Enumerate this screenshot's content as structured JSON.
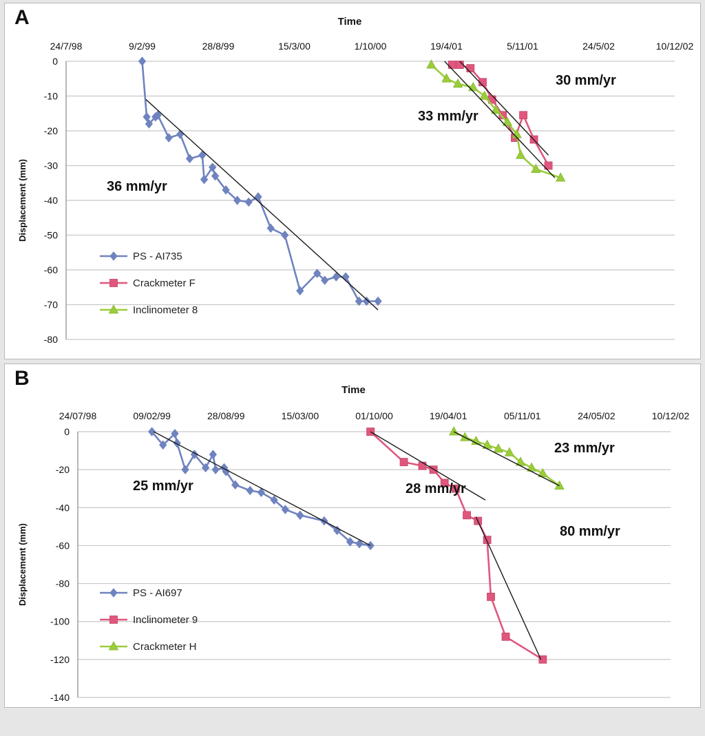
{
  "chart_data": [
    {
      "panel_label": "A",
      "type": "line",
      "title": "Time",
      "xlabel": "Time",
      "ylabel": "Displacement (mm)",
      "x_tick_labels": [
        "24/7/98",
        "9/2/99",
        "28/8/99",
        "15/3/00",
        "1/10/00",
        "19/4/01",
        "5/11/01",
        "24/5/02",
        "10/12/02"
      ],
      "x_unit": "days since 24/7/98",
      "xlim": [
        0,
        1600
      ],
      "ylim": [
        -80,
        0
      ],
      "yticks": [
        0,
        -10,
        -20,
        -30,
        -40,
        -50,
        -60,
        -70,
        -80
      ],
      "grid": true,
      "legend_position": "bottom-left",
      "series": [
        {
          "name": "PS - AI735",
          "color": "#6f83bf",
          "marker": "diamond",
          "x": [
            200,
            212,
            218,
            235,
            241,
            270,
            300,
            325,
            358,
            363,
            385,
            392,
            420,
            450,
            480,
            505,
            538,
            575,
            615,
            660,
            680,
            710,
            735,
            770,
            790,
            820
          ],
          "y": [
            0,
            -16,
            -18,
            -16,
            -15.5,
            -22,
            -21,
            -28,
            -27,
            -34,
            -30.5,
            -33,
            -37,
            -40,
            -40.5,
            -39,
            -48,
            -50,
            -66,
            -61,
            -63,
            -62,
            -62,
            -69,
            -69,
            -69
          ]
        },
        {
          "name": "Crackmeter F",
          "color": "#e0567c",
          "marker": "square",
          "x": [
            1015,
            1035,
            1063,
            1095,
            1120,
            1148,
            1180,
            1202,
            1230,
            1268
          ],
          "y": [
            -1,
            -1,
            -2,
            -6,
            -11,
            -15.5,
            -22,
            -15.5,
            -22.5,
            -30
          ]
        },
        {
          "name": "Inclinometer 8",
          "color": "#9acd3a",
          "marker": "triangle",
          "x": [
            960,
            1000,
            1030,
            1070,
            1100,
            1130,
            1160,
            1185,
            1195,
            1235,
            1300
          ],
          "y": [
            -1,
            -5,
            -6.5,
            -7.5,
            -10,
            -14,
            -17.5,
            -21,
            -27,
            -31,
            -33.5
          ]
        }
      ],
      "trendlines": [
        {
          "label": "36 mm/yr",
          "x": [
            210,
            820
          ],
          "y": [
            -11,
            -71.5
          ]
        },
        {
          "label": "33 mm/yr",
          "x": [
            995,
            1285
          ],
          "y": [
            0,
            -33.5
          ]
        },
        {
          "label": "30 mm/yr",
          "x": [
            1035,
            1268
          ],
          "y": [
            0,
            -27
          ]
        }
      ]
    },
    {
      "panel_label": "B",
      "type": "line",
      "title": "Time",
      "xlabel": "Time",
      "ylabel": "Displacement (mm)",
      "x_tick_labels": [
        "24/07/98",
        "09/02/99",
        "28/08/99",
        "15/03/00",
        "01/10/00",
        "19/04/01",
        "05/11/01",
        "24/05/02",
        "10/12/02"
      ],
      "x_unit": "days since 24/07/98",
      "xlim": [
        0,
        1600
      ],
      "ylim": [
        -140,
        0
      ],
      "yticks": [
        0,
        -20,
        -40,
        -60,
        -80,
        -100,
        -120,
        -140
      ],
      "grid": true,
      "legend_position": "bottom-left",
      "series": [
        {
          "name": "PS - AI697",
          "color": "#6f83bf",
          "marker": "diamond",
          "x": [
            200,
            230,
            262,
            268,
            290,
            315,
            345,
            365,
            372,
            395,
            400,
            425,
            465,
            495,
            530,
            560,
            600,
            665,
            700,
            735,
            760,
            790
          ],
          "y": [
            0,
            -7,
            -1,
            -6,
            -20,
            -12,
            -19,
            -12,
            -20,
            -19,
            -21,
            -28,
            -31,
            -32,
            -36,
            -41,
            -44,
            -47,
            -52,
            -58,
            -59,
            -60
          ]
        },
        {
          "name": "Inclinometer 9",
          "color": "#e0567c",
          "marker": "square",
          "x": [
            790,
            880,
            930,
            960,
            990,
            1020,
            1050,
            1080,
            1105,
            1115,
            1155,
            1255
          ],
          "y": [
            0,
            -16,
            -18,
            -20,
            -27,
            -30,
            -44,
            -47,
            -57,
            -87,
            -108,
            -120
          ]
        },
        {
          "name": "Crackmeter H",
          "color": "#9acd3a",
          "marker": "triangle",
          "x": [
            1015,
            1045,
            1075,
            1105,
            1135,
            1165,
            1195,
            1225,
            1255,
            1300
          ],
          "y": [
            0,
            -3,
            -5,
            -7,
            -9,
            -11,
            -16,
            -19,
            -22,
            -28.5
          ]
        }
      ],
      "trendlines": [
        {
          "label": "25 mm/yr",
          "x": [
            205,
            790
          ],
          "y": [
            0,
            -60
          ]
        },
        {
          "label": "28 mm/yr",
          "x": [
            790,
            1100
          ],
          "y": [
            0,
            -36
          ]
        },
        {
          "label": "23 mm/yr",
          "x": [
            1015,
            1300
          ],
          "y": [
            0,
            -28.5
          ]
        },
        {
          "label": "80 mm/yr",
          "x": [
            1075,
            1250
          ],
          "y": [
            -45,
            -120
          ]
        }
      ]
    }
  ]
}
